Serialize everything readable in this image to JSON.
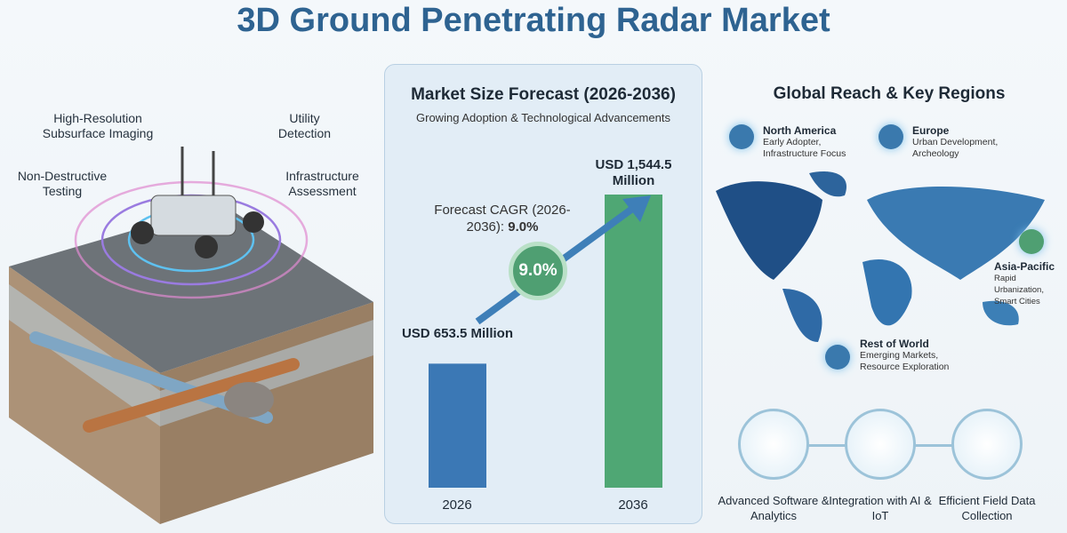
{
  "title": "3D Ground Penetrating Radar Market",
  "illustration": {
    "labels": [
      "High-Resolution Subsurface Imaging",
      "Utility Detection",
      "Non-Destructive Testing",
      "Infrastructure Assessment"
    ]
  },
  "chart_data": {
    "type": "bar",
    "title": "Market Size Forecast (2026-2036)",
    "subtitle": "Growing Adoption & Technological Advancements",
    "categories": [
      "2026",
      "2036"
    ],
    "values": [
      653.5,
      1544.5
    ],
    "unit": "USD Million",
    "data_labels": [
      "USD 653.5 Million",
      "USD 1,544.5 Million"
    ],
    "colors": [
      "#3b78b5",
      "#4fa774"
    ],
    "annotation": {
      "text": "Forecast CAGR (2026-2036):",
      "value": "9.0%",
      "badge": "9.0%"
    },
    "grid": false
  },
  "reach": {
    "title": "Global Reach & Key Regions",
    "regions": [
      {
        "name": "North America",
        "desc": "Early Adopter, Infrastructure Focus",
        "icon": "city-icon"
      },
      {
        "name": "Europe",
        "desc": "Urban Development, Archeology",
        "icon": "radar-truck-icon"
      },
      {
        "name": "Asia-Pacific",
        "desc": "Rapid Urbanization, Smart Cities",
        "icon": "growth-chart-icon"
      },
      {
        "name": "Rest of World",
        "desc": "Emerging Markets, Resource Exploration",
        "icon": "money-hand-icon"
      }
    ]
  },
  "features": [
    {
      "label": "Advanced Software & Analytics",
      "icon": "gear-search-icon"
    },
    {
      "label": "Integration with AI & IoT",
      "icon": "cloud-icon"
    },
    {
      "label": "Efficient Field Data Collection",
      "icon": "engineer-icon"
    }
  ]
}
